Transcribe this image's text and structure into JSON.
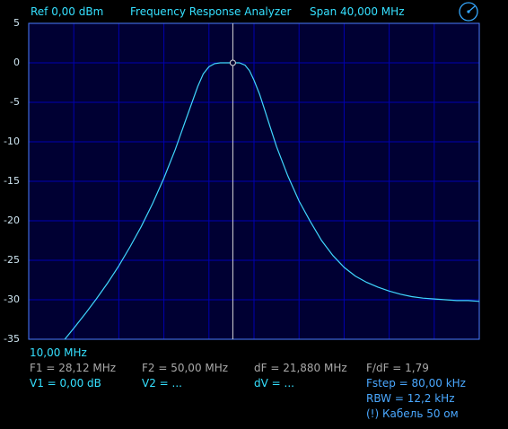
{
  "header": {
    "ref": "Ref  0,00 dBm",
    "title": "Frequency Response Analyzer",
    "span": "Span 40,000 MHz"
  },
  "icons": {
    "settings": "dial-icon"
  },
  "chart_data": {
    "type": "line",
    "title": "",
    "xlabel": "",
    "ylabel": "",
    "xlim": [
      10.0,
      50.0
    ],
    "ylim": [
      -35,
      5
    ],
    "yticks": [
      5,
      0,
      -5,
      -10,
      -15,
      -20,
      -25,
      -30,
      -35
    ],
    "ytick_labels": [
      "5",
      "0",
      "-5",
      "-10",
      "-15",
      "-20",
      "-25",
      "-30",
      "-35"
    ],
    "grid": true,
    "marker": {
      "x": 28.12,
      "y": 0.0
    },
    "series": [
      {
        "x": [
          13.2,
          14.0,
          15.0,
          16.0,
          17.0,
          18.0,
          19.0,
          20.0,
          21.0,
          22.0,
          23.0,
          24.0,
          25.0,
          25.5,
          26.0,
          26.5,
          27.0,
          27.5,
          28.12,
          28.7,
          29.2,
          29.6,
          30.0,
          30.5,
          31.0,
          31.5,
          32.0,
          33.0,
          34.0,
          35.0,
          36.0,
          37.0,
          38.0,
          39.0,
          40.0,
          41.0,
          42.0,
          43.0,
          44.0,
          45.0,
          46.0,
          47.0,
          48.0,
          49.0,
          50.0
        ],
        "y": [
          -35.0,
          -33.6,
          -31.8,
          -29.9,
          -27.9,
          -25.7,
          -23.3,
          -20.7,
          -17.8,
          -14.6,
          -11.0,
          -7.0,
          -3.0,
          -1.4,
          -0.5,
          -0.1,
          0.0,
          0.0,
          0.0,
          0.0,
          -0.3,
          -1.0,
          -2.2,
          -4.0,
          -6.2,
          -8.4,
          -10.6,
          -14.3,
          -17.5,
          -20.1,
          -22.5,
          -24.4,
          -25.9,
          -27.0,
          -27.8,
          -28.4,
          -28.9,
          -29.3,
          -29.6,
          -29.8,
          -29.9,
          -30.0,
          -30.1,
          -30.1,
          -30.2
        ]
      }
    ]
  },
  "footer": {
    "start_freq": "10,00 MHz",
    "f1": "F1 = 28,12 MHz",
    "f2": "F2 = 50,00 MHz",
    "df": "dF = 21,880 MHz",
    "fdf": "F/dF = 1,79",
    "v1": "V1 = 0,00 dB",
    "v2": "V2 = ...",
    "dv": "dV = ...",
    "fstep": "Fstep = 80,00 kHz",
    "rbw": "RBW = 12,2 kHz",
    "cable": "(!) Кабель 50 ом"
  },
  "colors": {
    "plot_bg": "#000033",
    "grid": "#0000b0",
    "trace": "#40d8ff",
    "marker_line": "#d8d8d8",
    "accent": "#35e0ff"
  }
}
